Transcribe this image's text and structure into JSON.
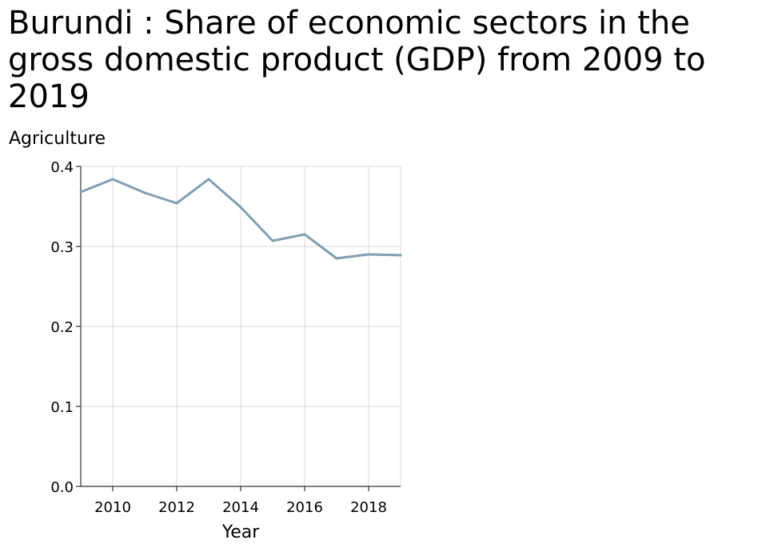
{
  "chart_data": {
    "type": "line",
    "title": "Burundi : Share of economic sectors in the gross domestic product (GDP) from 2009 to 2019",
    "ylabel": "Agriculture",
    "xlabel": "Year",
    "x": [
      2009,
      2010,
      2011,
      2012,
      2013,
      2014,
      2015,
      2016,
      2017,
      2018,
      2019
    ],
    "series": [
      {
        "values": [
          0.368,
          0.384,
          0.367,
          0.354,
          0.384,
          0.349,
          0.307,
          0.315,
          0.285,
          0.29,
          0.289
        ]
      }
    ],
    "xlim": [
      2009,
      2019
    ],
    "ylim": [
      0,
      0.4
    ],
    "xticks": [
      2010,
      2012,
      2014,
      2016,
      2018
    ],
    "xtick_labels": [
      "2010",
      "2012",
      "2014",
      "2016",
      "2018"
    ],
    "yticks": [
      0,
      0.1,
      0.2,
      0.3,
      0.4
    ],
    "ytick_labels": [
      "0.0",
      "0.1",
      "0.2",
      "0.3",
      "0.4"
    ],
    "grid": true,
    "line_color": "#7f9fb3",
    "grid_color": "#d9d9d9"
  }
}
